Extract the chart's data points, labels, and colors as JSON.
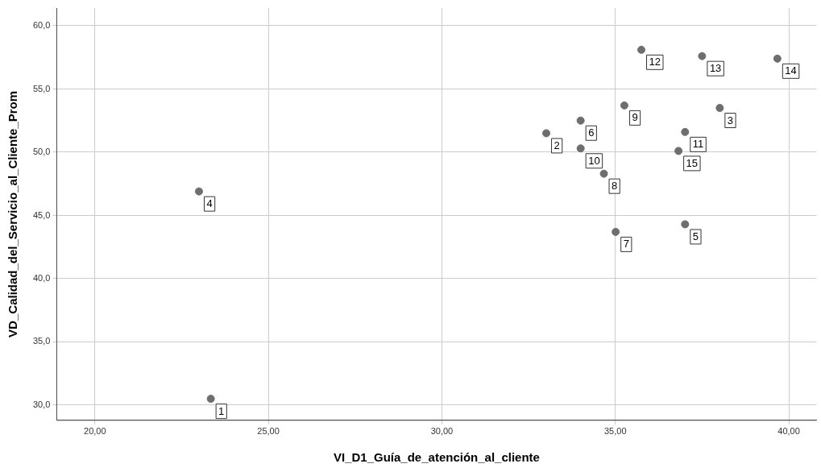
{
  "chart_data": {
    "type": "scatter",
    "xlabel": "VI_D1_Guía_de_atención_al_cliente",
    "ylabel": "VD_Calidad_del_Servicio_al_Cliente_Prom",
    "x": [
      23.34,
      33.01,
      38.01,
      23.0,
      37.01,
      34.0,
      35.01,
      34.67,
      35.26,
      34.0,
      37.01,
      35.75,
      37.5,
      39.67,
      36.82
    ],
    "values": [
      30.5,
      51.5,
      53.5,
      46.9,
      44.3,
      52.5,
      43.7,
      48.3,
      53.7,
      50.3,
      51.6,
      58.1,
      57.6,
      57.4,
      50.1
    ],
    "color": "#6e6e6e",
    "marker": "circle",
    "grid": true,
    "legend": false,
    "xlim": [
      18.9,
      40.8
    ],
    "ylim": [
      28.8,
      61.4
    ],
    "xticks": [
      {
        "value": 20,
        "label": "20,00"
      },
      {
        "value": 25,
        "label": "25,00"
      },
      {
        "value": 30,
        "label": "30,00"
      },
      {
        "value": 35,
        "label": "35,00"
      },
      {
        "value": 40,
        "label": "40,00"
      }
    ],
    "yticks": [
      {
        "value": 30,
        "label": "30,0"
      },
      {
        "value": 35,
        "label": "35,0"
      },
      {
        "value": 40,
        "label": "40,0"
      },
      {
        "value": 45,
        "label": "45,0"
      },
      {
        "value": 50,
        "label": "50,0"
      },
      {
        "value": 55,
        "label": "55,0"
      },
      {
        "value": 60,
        "label": "60,0"
      }
    ],
    "annotations": [
      {
        "text": "1",
        "x": 23.34,
        "y": 30.5
      },
      {
        "text": "2",
        "x": 33.01,
        "y": 51.5
      },
      {
        "text": "3",
        "x": 38.01,
        "y": 53.5
      },
      {
        "text": "4",
        "x": 23.0,
        "y": 46.9
      },
      {
        "text": "5",
        "x": 37.01,
        "y": 44.3
      },
      {
        "text": "6",
        "x": 34.0,
        "y": 52.5
      },
      {
        "text": "7",
        "x": 35.01,
        "y": 43.7
      },
      {
        "text": "8",
        "x": 34.67,
        "y": 48.3
      },
      {
        "text": "9",
        "x": 35.26,
        "y": 53.7
      },
      {
        "text": "10",
        "x": 34.0,
        "y": 50.3
      },
      {
        "text": "11",
        "x": 37.01,
        "y": 51.6
      },
      {
        "text": "12",
        "x": 35.75,
        "y": 58.1
      },
      {
        "text": "13",
        "x": 37.5,
        "y": 57.6
      },
      {
        "text": "14",
        "x": 39.67,
        "y": 57.4
      },
      {
        "text": "15",
        "x": 36.82,
        "y": 50.1
      }
    ]
  }
}
